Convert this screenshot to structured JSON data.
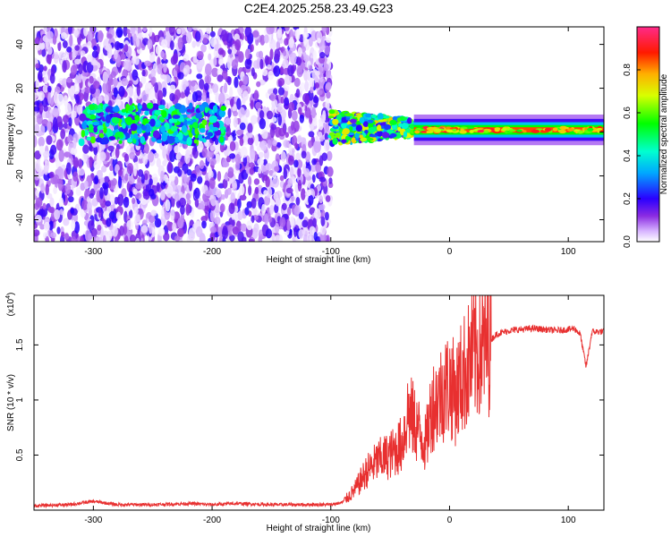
{
  "title": "C2E4.2025.258.23.49.G23",
  "chart_data": [
    {
      "type": "heatmap",
      "xlabel": "Height of straight line (km)",
      "ylabel": "Frequency (Hz)",
      "xlim": [
        -350,
        130
      ],
      "ylim": [
        -50,
        48
      ],
      "x_ticks": [
        -300,
        -200,
        -100,
        0,
        100
      ],
      "y_ticks": [
        -40,
        -20,
        0,
        20,
        40
      ],
      "colorbar": {
        "label": "Normalized spectral amplitude",
        "range": [
          0,
          1
        ],
        "ticks": [
          0.0,
          0.2,
          0.4,
          0.6,
          0.8
        ]
      },
      "regions": [
        {
          "name": "",
          "x_range": [
            -350,
            -100
          ],
          "freq_range": [
            -50,
            48
          ],
          "amplitude": 0.1
        },
        {
          "name": "",
          "x_range": [
            -310,
            -190
          ],
          "freq_range": [
            -5,
            12
          ],
          "amplitude": 0.45
        },
        {
          "name": "",
          "x_range": [
            -100,
            -30
          ],
          "freq_range": [
            -5,
            10
          ],
          "amplitude": 0.6
        },
        {
          "name": "",
          "x_range": [
            -30,
            130
          ],
          "freq_range": [
            -2,
            4
          ],
          "amplitude": 0.85
        }
      ]
    },
    {
      "type": "line",
      "xlabel": "Height of straight line (km)",
      "ylabel": "SNR (10 * v/v)",
      "y_multiplier": "(x10",
      "y_multiplier_exp": "4",
      "xlim": [
        -350,
        130
      ],
      "ylim": [
        0,
        1.95
      ],
      "x_ticks": [
        -300,
        -200,
        -100,
        0,
        100
      ],
      "y_ticks": [
        0.5,
        1.0,
        1.5
      ],
      "color": "#e83030",
      "series": [
        {
          "x": [
            -350,
            -320,
            -300,
            -280,
            -250,
            -220,
            -200,
            -180,
            -150,
            -120,
            -100,
            -90,
            -80,
            -70,
            -60,
            -50,
            -40,
            -35,
            -30,
            -25,
            -20,
            -15,
            -10,
            -5,
            0,
            5,
            10,
            15,
            20,
            25,
            30,
            40,
            50,
            60,
            70,
            80,
            90,
            100,
            105,
            110,
            115,
            120,
            130
          ],
          "y": [
            0.04,
            0.05,
            0.08,
            0.05,
            0.05,
            0.06,
            0.05,
            0.06,
            0.05,
            0.05,
            0.05,
            0.07,
            0.18,
            0.35,
            0.45,
            0.5,
            0.6,
            0.9,
            0.8,
            0.7,
            0.6,
            0.95,
            1.0,
            1.1,
            1.15,
            1.05,
            1.2,
            1.3,
            1.4,
            1.45,
            1.5,
            1.6,
            1.63,
            1.64,
            1.65,
            1.64,
            1.63,
            1.64,
            1.65,
            1.6,
            1.3,
            1.62,
            1.62
          ]
        }
      ]
    }
  ]
}
